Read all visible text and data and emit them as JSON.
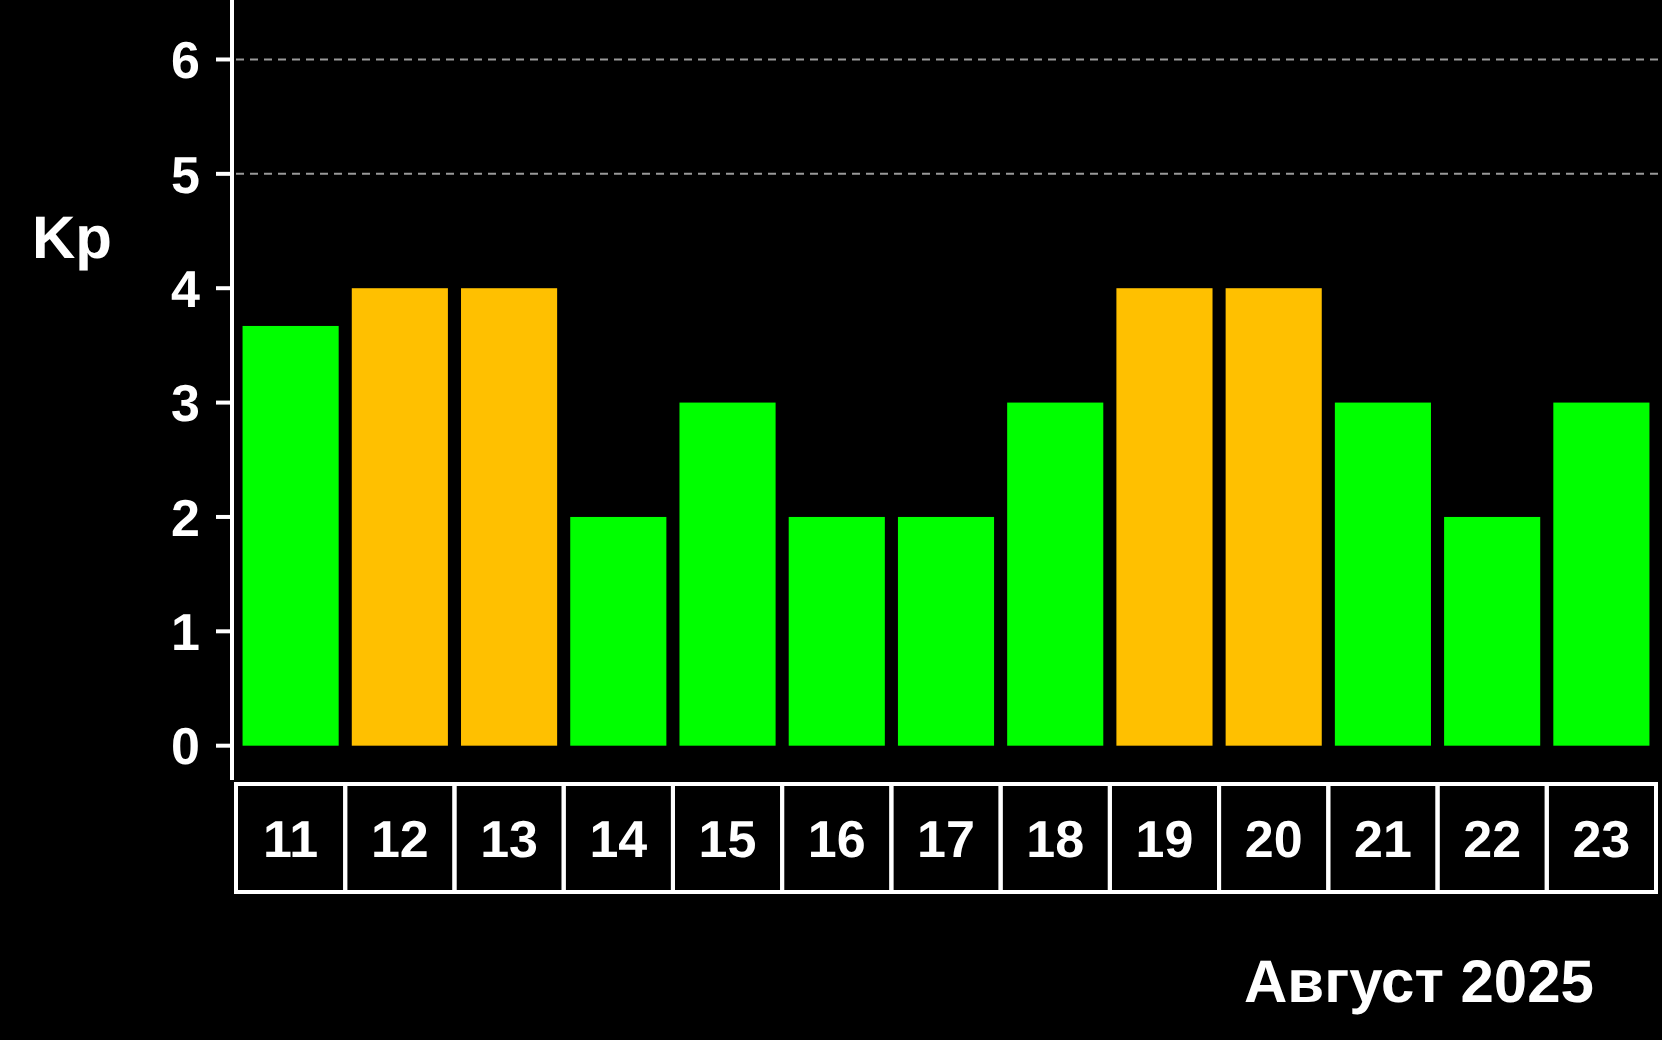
{
  "chart_data": {
    "type": "bar",
    "xlabel": "Август 2025",
    "ylabel": "Kp",
    "categories": [
      "11",
      "12",
      "13",
      "14",
      "15",
      "16",
      "17",
      "18",
      "19",
      "20",
      "21",
      "22",
      "23"
    ],
    "values": [
      3.67,
      4,
      4,
      2,
      3,
      2,
      2,
      3,
      4,
      4,
      3,
      2,
      3
    ],
    "colors": [
      "#00ff00",
      "#ffc000",
      "#ffc000",
      "#00ff00",
      "#00ff00",
      "#00ff00",
      "#00ff00",
      "#00ff00",
      "#ffc000",
      "#ffc000",
      "#00ff00",
      "#00ff00",
      "#00ff00"
    ],
    "ylim": [
      -0.3,
      6.52
    ],
    "yticks": [
      0,
      1,
      2,
      3,
      4,
      5,
      6
    ],
    "ref_lines": [
      {
        "axis": "y",
        "value": 5,
        "color": "#999999",
        "line_style": "dashed"
      },
      {
        "axis": "y",
        "value": 6,
        "color": "#999999",
        "line_style": "dashed"
      }
    ]
  }
}
